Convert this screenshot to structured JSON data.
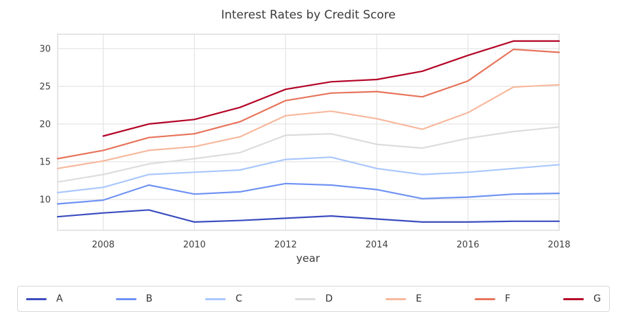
{
  "title": "Interest Rates by Credit Score",
  "chart_data": {
    "type": "line",
    "title": "Interest Rates by Credit Score",
    "xlabel": "year",
    "ylabel": "",
    "x": [
      2007,
      2008,
      2009,
      2010,
      2011,
      2012,
      2013,
      2014,
      2015,
      2016,
      2017,
      2018
    ],
    "x_ticks": [
      2008,
      2010,
      2012,
      2014,
      2016,
      2018
    ],
    "y_ticks": [
      10,
      15,
      20,
      25,
      30
    ],
    "xlim": [
      2007,
      2018
    ],
    "ylim": [
      5.9,
      31.9
    ],
    "grid": true,
    "legend_position": "bottom",
    "series": [
      {
        "name": "A",
        "color": "#3b4cc0",
        "values": [
          7.7,
          8.2,
          8.6,
          7.0,
          7.2,
          7.5,
          7.8,
          7.4,
          7.0,
          7.0,
          7.1,
          7.1
        ]
      },
      {
        "name": "B",
        "color": "#6f92f3",
        "values": [
          9.4,
          9.9,
          11.9,
          10.7,
          11.0,
          12.1,
          11.9,
          11.3,
          10.1,
          10.3,
          10.7,
          10.8
        ]
      },
      {
        "name": "C",
        "color": "#aac7fd",
        "values": [
          10.9,
          11.6,
          13.3,
          13.6,
          13.9,
          15.3,
          15.6,
          14.1,
          13.3,
          13.6,
          14.1,
          14.6
        ]
      },
      {
        "name": "D",
        "color": "#dddcdc",
        "values": [
          12.3,
          13.3,
          14.7,
          15.4,
          16.2,
          18.5,
          18.7,
          17.3,
          16.8,
          18.1,
          19.0,
          19.6
        ]
      },
      {
        "name": "E",
        "color": "#f7b89c",
        "values": [
          14.1,
          15.1,
          16.5,
          17.0,
          18.3,
          21.1,
          21.7,
          20.7,
          19.3,
          21.5,
          24.9,
          25.2
        ]
      },
      {
        "name": "F",
        "color": "#e7745b",
        "values": [
          15.4,
          16.5,
          18.2,
          18.7,
          20.3,
          23.1,
          24.1,
          24.3,
          23.6,
          25.7,
          29.9,
          29.5
        ]
      },
      {
        "name": "G",
        "color": "#b40426",
        "values": [
          null,
          18.4,
          20.0,
          20.6,
          22.2,
          24.6,
          25.6,
          25.9,
          27.0,
          29.1,
          31.0,
          31.0
        ]
      }
    ]
  }
}
